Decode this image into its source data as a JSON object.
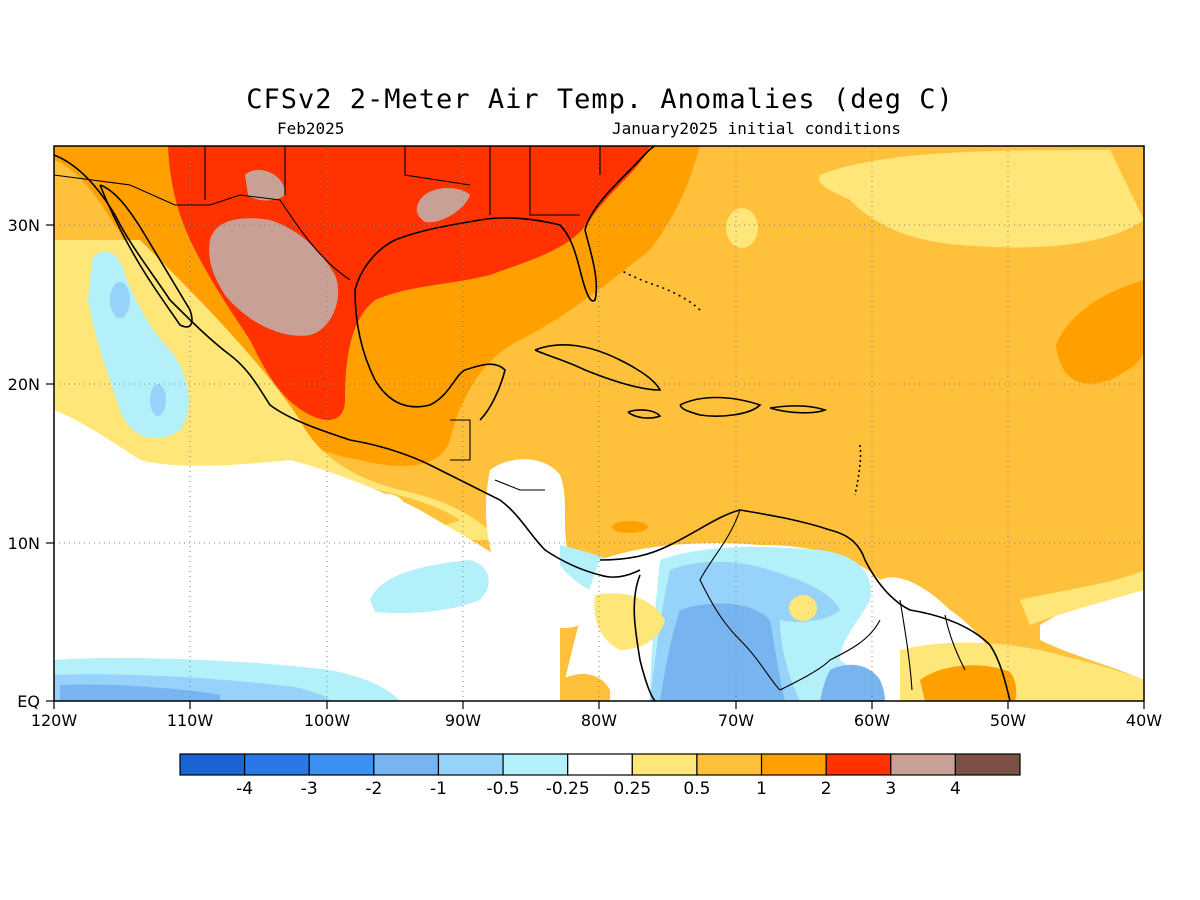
{
  "header": {
    "title": "CFSv2 2-Meter Air Temp. Anomalies (deg C)",
    "valid_month": "Feb2025",
    "initial_conditions": "January2025 initial conditions"
  },
  "map": {
    "lat_labels": [
      "30N",
      "20N",
      "10N",
      "EQ"
    ],
    "lon_labels": [
      "120W",
      "110W",
      "100W",
      "90W",
      "80W",
      "70W",
      "60W",
      "50W",
      "40W"
    ],
    "extent": {
      "lon_min": -120,
      "lon_max": -40,
      "lat_min": 0,
      "lat_max": 35
    }
  },
  "legend": {
    "colors": [
      "#1964d2",
      "#2a78e6",
      "#3c91f0",
      "#78b4f0",
      "#96d2fa",
      "#b4f0fa",
      "#ffffff",
      "#ffe678",
      "#ffc03c",
      "#ffa000",
      "#ff3200",
      "#c8a096",
      "#7d5046"
    ],
    "labels": [
      "-4",
      "-3",
      "-2",
      "-1",
      "-0.5",
      "-0.25",
      "0.25",
      "0.5",
      "1",
      "2",
      "3",
      "4"
    ]
  }
}
